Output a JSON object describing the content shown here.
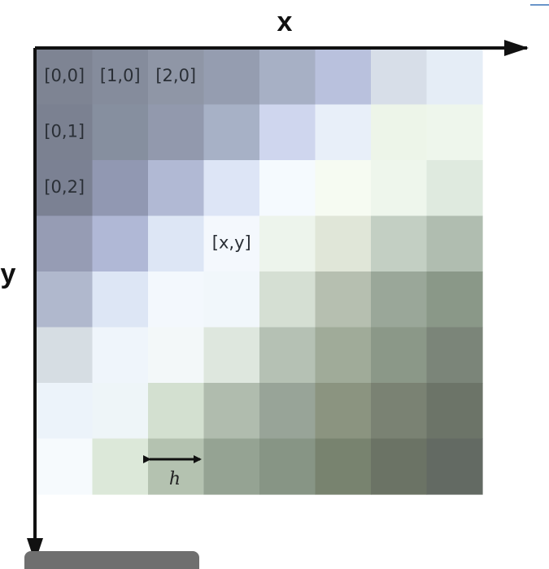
{
  "axes": {
    "x_label": "x",
    "y_label": "y"
  },
  "grid": {
    "columns": 8,
    "rows": 8,
    "cells": [
      [
        "#7e8493",
        "#858c9c",
        "#8f96a6",
        "#959db0",
        "#a7b0c5",
        "#b9c1dd",
        "#d7dee8",
        "#e5edf6"
      ],
      [
        "#7b8191",
        "#868f9f",
        "#9299ad",
        "#a7b1c6",
        "#cfd6ee",
        "#e8eff9",
        "#edf5e9",
        "#eef6ec"
      ],
      [
        "#7b8193",
        "#9198b2",
        "#b1b9d4",
        "#dde5f6",
        "#f5fafe",
        "#f6fbf2",
        "#eef6ec",
        "#dfeadf"
      ],
      [
        "#969cb4",
        "#b0b8d6",
        "#dde6f5",
        "#f4f8fd",
        "#edf4ec",
        "#e0e6d8",
        "#c3cfc3",
        "#b0bdb0"
      ],
      [
        "#b0b8cd",
        "#dde6f5",
        "#f3f8fd",
        "#f1f7fb",
        "#d5dfd3",
        "#b6bfb0",
        "#9aa799",
        "#8a9888"
      ],
      [
        "#d6dde3",
        "#eff5fb",
        "#f3f8f9",
        "#dee7de",
        "#b5c1b4",
        "#a0ab99",
        "#8b9888",
        "#7b8579"
      ],
      [
        "#ecf3fa",
        "#eef5f8",
        "#d3e0d0",
        "#b0bcae",
        "#98a498",
        "#8b9480",
        "#7a8273",
        "#6c7468"
      ],
      [
        "#f6fafd",
        "#dce8d9",
        "#b4c2b0",
        "#95a393",
        "#879585",
        "#78836f",
        "#6b7365",
        "#636a63"
      ]
    ],
    "cell_labels": [
      {
        "text": "[0,0]",
        "col": 0,
        "row": 0
      },
      {
        "text": "[1,0]",
        "col": 1,
        "row": 0
      },
      {
        "text": "[2,0]",
        "col": 2,
        "row": 0
      },
      {
        "text": "[0,1]",
        "col": 0,
        "row": 1
      },
      {
        "text": "[0,2]",
        "col": 0,
        "row": 2
      },
      {
        "text": "[x,y]",
        "col": 3,
        "row": 3
      }
    ],
    "spacing_label": "h"
  }
}
